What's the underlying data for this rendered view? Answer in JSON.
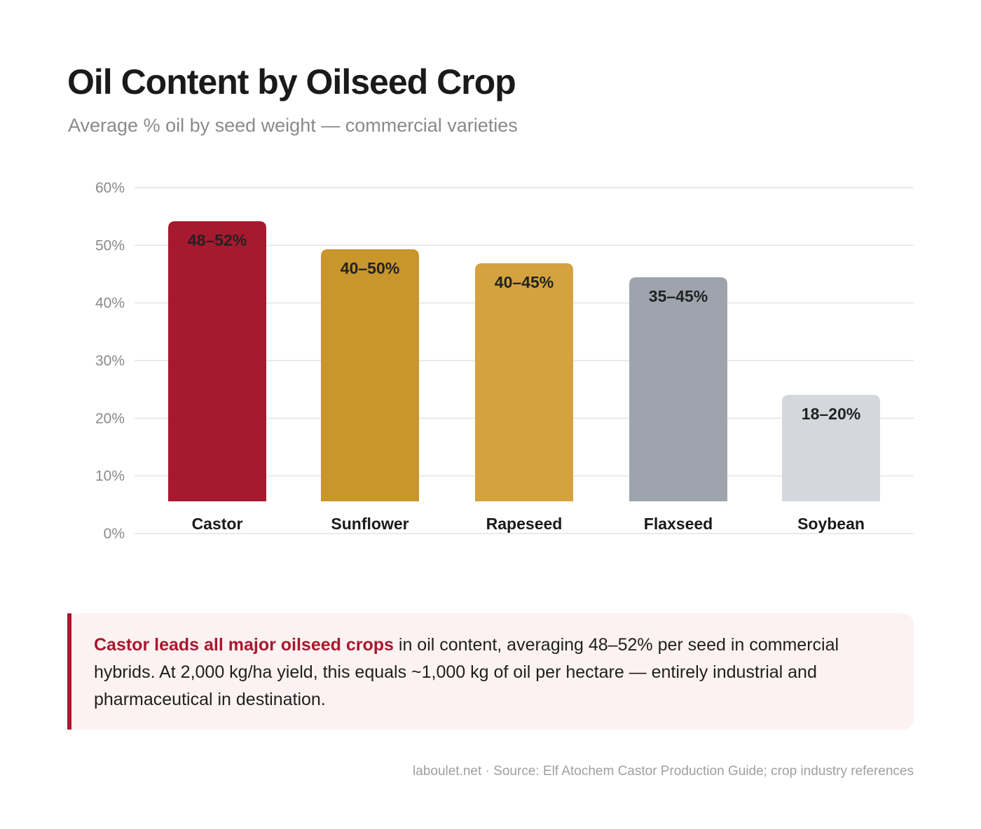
{
  "title": "Oil Content by Oilseed Crop",
  "subtitle": "Average % oil by seed weight — commercial varieties",
  "chart_data": {
    "type": "bar",
    "title": "Oil Content by Oilseed Crop",
    "subtitle": "Average % oil by seed weight — commercial varieties",
    "categories": [
      "Castor",
      "Sunflower",
      "Rapeseed",
      "Flaxseed",
      "Soybean"
    ],
    "values": [
      50,
      45,
      42.5,
      40,
      19
    ],
    "data_labels": [
      "48–52%",
      "40–50%",
      "40–45%",
      "35–45%",
      "18–20%"
    ],
    "colors": [
      "#a6192e",
      "#c9962c",
      "#d4a23e",
      "#9ea4ae",
      "#d4d7dc"
    ],
    "yticks": [
      "0%",
      "10%",
      "20%",
      "30%",
      "40%",
      "50%",
      "60%"
    ],
    "ylim": [
      0,
      60
    ],
    "xlabel": "",
    "ylabel": "",
    "grid": true
  },
  "callout": {
    "highlight": "Castor leads all major oilseed crops",
    "text": " in oil content, averaging 48–52% per seed in commercial hybrids. At 2,000 kg/ha yield, this equals ~1,000 kg of oil per hectare — entirely industrial and pharmaceutical in destination."
  },
  "footer": "laboulet.net · Source: Elf Atochem Castor Production Guide; crop industry references"
}
